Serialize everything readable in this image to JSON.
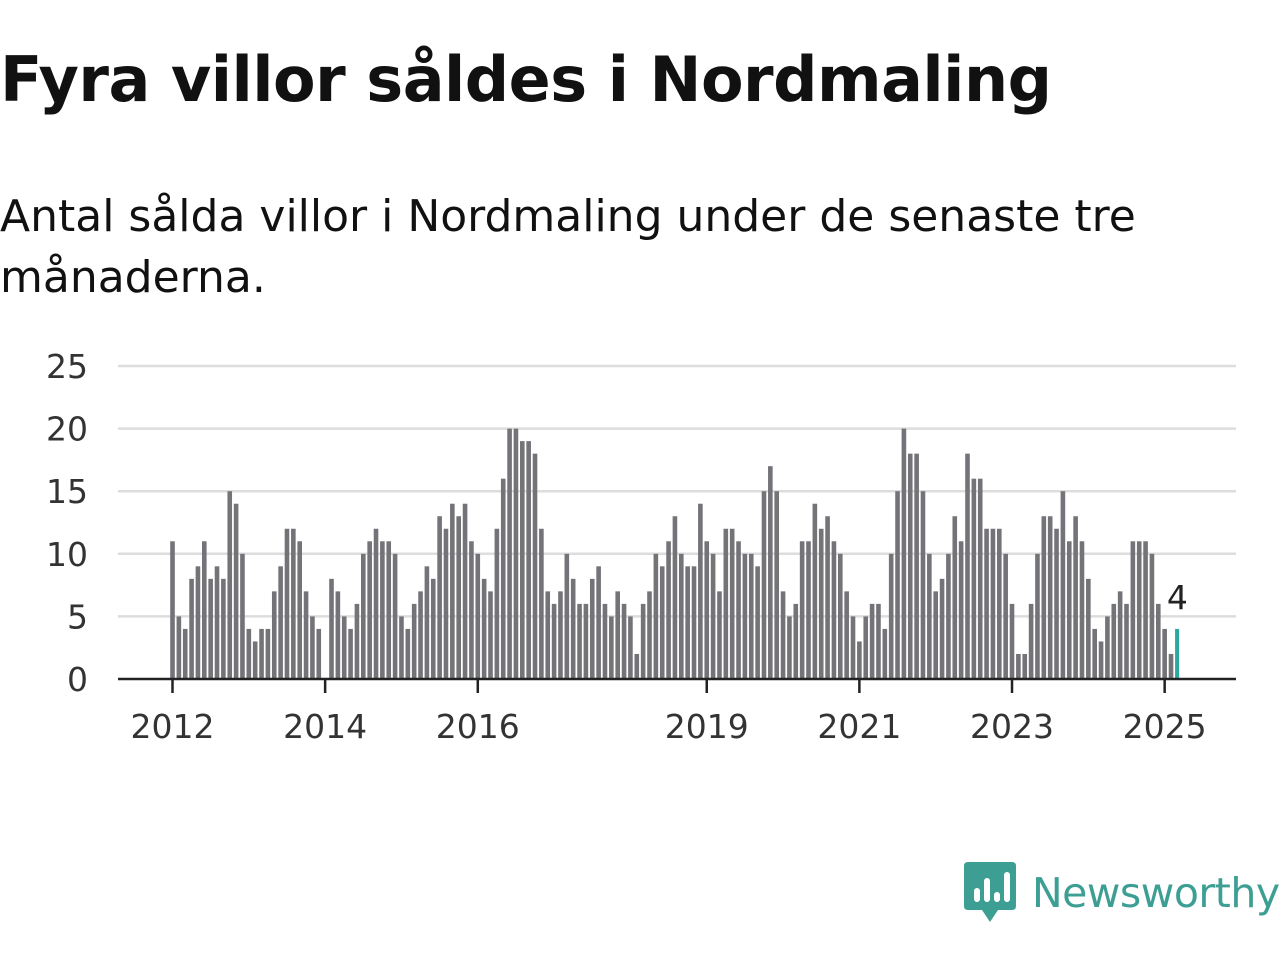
{
  "title": "Fyra villor såldes i Nordmaling",
  "subtitle": "Antal sålda villor i Nordmaling under de senaste tre månaderna.",
  "brand": {
    "name": "Newsworthy",
    "icon": "newsworthy-logo-icon",
    "color": "#3d9f93"
  },
  "colors": {
    "bar": "#747378",
    "highlight": "#2aa99c",
    "grid": "#dddddd",
    "axis": "#222222",
    "text": "#333333"
  },
  "chart_data": {
    "type": "bar",
    "title": "Fyra villor såldes i Nordmaling",
    "subtitle": "Antal sålda villor i Nordmaling under de senaste tre månaderna.",
    "xlabel": "",
    "ylabel": "",
    "x_unit": "month",
    "start_month": "2012-01",
    "end_month": "2025-02",
    "ylim": [
      0,
      25
    ],
    "yticks": [
      0,
      5,
      10,
      15,
      20,
      25
    ],
    "xticks": [
      {
        "label": "2012",
        "month": "2012-01"
      },
      {
        "label": "2014",
        "month": "2014-01"
      },
      {
        "label": "2016",
        "month": "2016-01"
      },
      {
        "label": "2019",
        "month": "2019-01"
      },
      {
        "label": "2021",
        "month": "2021-01"
      },
      {
        "label": "2023",
        "month": "2023-01"
      },
      {
        "label": "2025",
        "month": "2025-01"
      }
    ],
    "grid": true,
    "values": [
      11,
      5,
      4,
      8,
      9,
      11,
      8,
      9,
      8,
      15,
      14,
      10,
      4,
      3,
      4,
      4,
      7,
      9,
      12,
      12,
      11,
      7,
      5,
      4,
      0,
      8,
      7,
      5,
      4,
      6,
      10,
      11,
      12,
      11,
      11,
      10,
      5,
      4,
      6,
      7,
      9,
      8,
      13,
      12,
      14,
      13,
      14,
      11,
      10,
      8,
      7,
      12,
      16,
      20,
      20,
      19,
      19,
      18,
      12,
      7,
      6,
      7,
      10,
      8,
      6,
      6,
      8,
      9,
      6,
      5,
      7,
      6,
      5,
      2,
      6,
      7,
      10,
      9,
      11,
      13,
      10,
      9,
      9,
      14,
      11,
      10,
      7,
      12,
      12,
      11,
      10,
      10,
      9,
      15,
      17,
      15,
      7,
      5,
      6,
      11,
      11,
      14,
      12,
      13,
      11,
      10,
      7,
      5,
      3,
      5,
      6,
      6,
      4,
      10,
      15,
      20,
      18,
      18,
      15,
      10,
      7,
      8,
      10,
      13,
      11,
      18,
      16,
      16,
      12,
      12,
      12,
      10,
      6,
      2,
      2,
      6,
      10,
      13,
      13,
      12,
      15,
      11,
      13,
      11,
      8,
      4,
      3,
      5,
      6,
      7,
      6,
      11,
      11,
      11,
      10,
      6,
      4,
      2,
      4
    ],
    "highlight_last": true,
    "annotation": {
      "text": "4",
      "target": "last"
    }
  }
}
